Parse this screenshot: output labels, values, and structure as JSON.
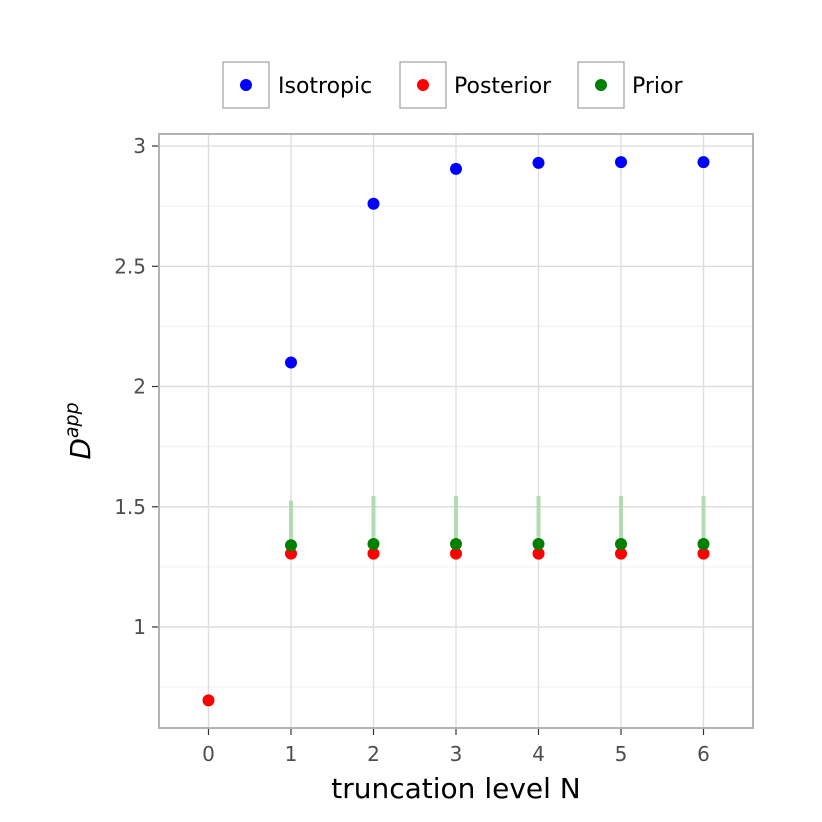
{
  "chart_data": {
    "type": "scatter",
    "xlabel": "truncation level N",
    "ylabel": "D",
    "ylabel_superscript": "app",
    "xlim": [
      -0.6,
      6.6
    ],
    "ylim": [
      0.58,
      3.05
    ],
    "x_ticks": [
      0,
      1,
      2,
      3,
      4,
      5,
      6
    ],
    "y_ticks": [
      1,
      1.5,
      2,
      2.5,
      3
    ],
    "y_tick_labels": [
      "1",
      "1.5",
      "2",
      "2.5",
      "3"
    ],
    "grid": true,
    "legend_placement": "top",
    "series": [
      {
        "name": "Isotropic",
        "color": "#0000ff",
        "points": [
          [
            1,
            2.1
          ],
          [
            2,
            2.76
          ],
          [
            3,
            2.905
          ],
          [
            4,
            2.93
          ],
          [
            5,
            2.933
          ],
          [
            6,
            2.933
          ]
        ]
      },
      {
        "name": "Posterior",
        "color": "#ff0000",
        "points": [
          [
            0,
            0.695
          ],
          [
            1,
            1.305
          ],
          [
            2,
            1.305
          ],
          [
            3,
            1.305
          ],
          [
            4,
            1.305
          ],
          [
            5,
            1.305
          ],
          [
            6,
            1.305
          ]
        ]
      },
      {
        "name": "Prior",
        "color": "#008000",
        "points": [
          [
            1,
            1.34
          ],
          [
            2,
            1.345
          ],
          [
            3,
            1.345
          ],
          [
            4,
            1.345
          ],
          [
            5,
            1.345
          ],
          [
            6,
            1.345
          ]
        ],
        "error_upper": [
          1.525,
          1.545,
          1.545,
          1.545,
          1.545,
          1.545
        ],
        "error_color": "#a8d8a8"
      }
    ]
  }
}
